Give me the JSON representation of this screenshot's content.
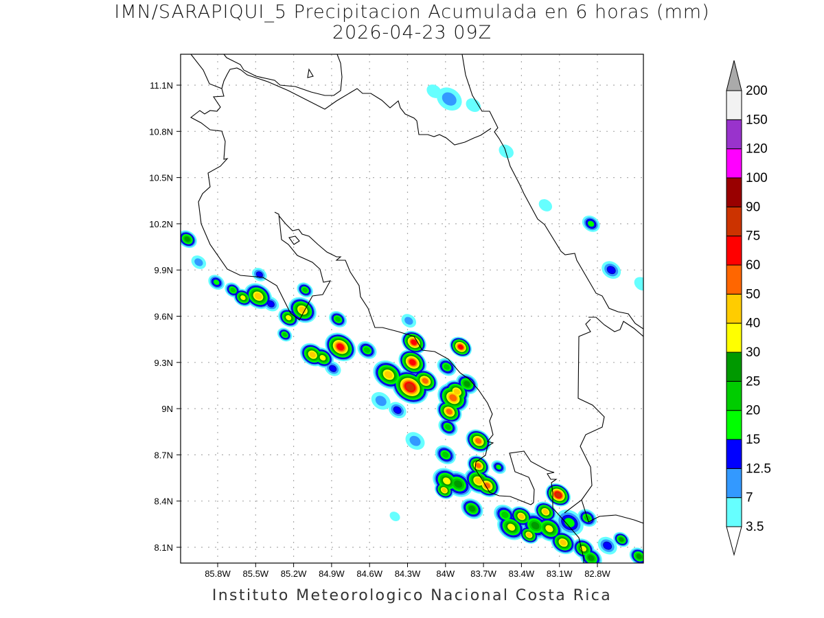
{
  "header": {
    "title": "IMN/SARAPIQUI_5 Precipitacion Acumulada en 6 horas (mm)",
    "subtitle": "2026-04-23 09Z"
  },
  "footer": "Instituto Meteorologico Nacional Costa Rica",
  "chart_data": {
    "type": "heatmap",
    "title": "IMN/SARAPIQUI_5 Precipitacion Acumulada en 6 horas (mm)",
    "valid_time": "2026-04-23 09Z",
    "units": "mm",
    "lon_ticks": [
      "85.8W",
      "85.5W",
      "85.2W",
      "84.9W",
      "84.6W",
      "84.3W",
      "84W",
      "83.7W",
      "83.4W",
      "83.1W",
      "82.8W"
    ],
    "lat_ticks": [
      "11.1N",
      "10.8N",
      "10.5N",
      "10.2N",
      "9.9N",
      "9.6N",
      "9.3N",
      "9N",
      "8.7N",
      "8.4N",
      "8.1N"
    ],
    "lon_range_W": [
      86.09,
      82.44
    ],
    "lat_range_N": [
      8.0,
      11.3
    ],
    "grid": true,
    "colorbar": {
      "position": "right",
      "labels": [
        "3.5",
        "7",
        "12.5",
        "15",
        "20",
        "25",
        "30",
        "40",
        "50",
        "60",
        "75",
        "90",
        "100",
        "120",
        "150",
        "200"
      ],
      "colors": [
        "#66ffff",
        "#3399ff",
        "#0000ff",
        "#00ff00",
        "#00cc00",
        "#009900",
        "#ffff00",
        "#ffcc00",
        "#ff6600",
        "#ff0000",
        "#cc3300",
        "#990000",
        "#ff00ff",
        "#9933cc",
        "#f2f2f2"
      ],
      "under_color": "#ffffff",
      "over_color": "#aaaaaa"
    },
    "precip_cells_note": "lonW, latN, max_mm, radius_deg",
    "precip_cells": [
      [
        86.04,
        10.1,
        25,
        0.04
      ],
      [
        85.95,
        9.95,
        7,
        0.025
      ],
      [
        85.81,
        9.82,
        15,
        0.03
      ],
      [
        85.68,
        9.77,
        20,
        0.03
      ],
      [
        85.6,
        9.72,
        30,
        0.04
      ],
      [
        85.48,
        9.73,
        40,
        0.07
      ],
      [
        85.47,
        9.87,
        12.5,
        0.025
      ],
      [
        85.38,
        9.68,
        12.5,
        0.03
      ],
      [
        85.24,
        9.59,
        30,
        0.045
      ],
      [
        85.13,
        9.64,
        40,
        0.07
      ],
      [
        85.11,
        9.77,
        20,
        0.03
      ],
      [
        85.27,
        9.48,
        20,
        0.025
      ],
      [
        84.85,
        9.58,
        20,
        0.035
      ],
      [
        84.83,
        9.4,
        60,
        0.08
      ],
      [
        85.05,
        9.35,
        40,
        0.06
      ],
      [
        84.97,
        9.33,
        30,
        0.05
      ],
      [
        84.89,
        9.26,
        12.5,
        0.03
      ],
      [
        84.62,
        9.38,
        20,
        0.04
      ],
      [
        84.25,
        9.43,
        60,
        0.06
      ],
      [
        84.29,
        9.57,
        7,
        0.025
      ],
      [
        84.26,
        9.3,
        60,
        0.07
      ],
      [
        84.45,
        9.22,
        40,
        0.08
      ],
      [
        84.28,
        9.14,
        75,
        0.1
      ],
      [
        84.16,
        9.18,
        50,
        0.06
      ],
      [
        83.94,
        9.07,
        50,
        0.08
      ],
      [
        83.97,
        8.98,
        50,
        0.06
      ],
      [
        83.88,
        9.4,
        60,
        0.05
      ],
      [
        83.99,
        9.27,
        20,
        0.04
      ],
      [
        83.91,
        9.11,
        40,
        0.06
      ],
      [
        83.83,
        9.16,
        25,
        0.05
      ],
      [
        83.98,
        8.88,
        20,
        0.04
      ],
      [
        84.38,
        8.99,
        12.5,
        0.035
      ],
      [
        84.51,
        9.05,
        7,
        0.04
      ],
      [
        84.24,
        8.79,
        7,
        0.04
      ],
      [
        83.74,
        8.79,
        50,
        0.06
      ],
      [
        84.0,
        8.7,
        20,
        0.045
      ],
      [
        83.74,
        8.63,
        50,
        0.05
      ],
      [
        83.58,
        8.62,
        15,
        0.025
      ],
      [
        83.99,
        8.53,
        30,
        0.07
      ],
      [
        83.9,
        8.51,
        25,
        0.07
      ],
      [
        83.74,
        8.53,
        40,
        0.07
      ],
      [
        83.67,
        8.5,
        50,
        0.06
      ],
      [
        84.01,
        8.47,
        40,
        0.04
      ],
      [
        83.79,
        8.35,
        25,
        0.05
      ],
      [
        83.48,
        8.23,
        30,
        0.07
      ],
      [
        83.53,
        8.31,
        20,
        0.05
      ],
      [
        83.4,
        8.3,
        40,
        0.05
      ],
      [
        83.29,
        8.24,
        25,
        0.07
      ],
      [
        83.21,
        8.33,
        40,
        0.05
      ],
      [
        83.34,
        8.18,
        40,
        0.04
      ],
      [
        83.11,
        8.44,
        75,
        0.06
      ],
      [
        83.18,
        8.22,
        30,
        0.07
      ],
      [
        83.07,
        8.13,
        40,
        0.06
      ],
      [
        83.02,
        8.26,
        15,
        0.07
      ],
      [
        82.91,
        8.09,
        30,
        0.05
      ],
      [
        82.85,
        8.03,
        25,
        0.05
      ],
      [
        82.72,
        8.11,
        12.5,
        0.04
      ],
      [
        82.61,
        8.15,
        25,
        0.03
      ],
      [
        82.47,
        8.04,
        25,
        0.04
      ],
      [
        83.97,
        11.01,
        7,
        0.06
      ],
      [
        84.09,
        11.06,
        3.5,
        0.025
      ],
      [
        83.78,
        10.97,
        3.5,
        0.025
      ],
      [
        83.52,
        10.67,
        3.5,
        0.025
      ],
      [
        83.21,
        10.32,
        3.5,
        0.02
      ],
      [
        82.85,
        10.2,
        15,
        0.035
      ],
      [
        82.69,
        9.9,
        12.5,
        0.04
      ],
      [
        82.45,
        9.81,
        3.5,
        0.025
      ],
      [
        82.88,
        8.29,
        20,
        0.04
      ],
      [
        84.4,
        8.3,
        3.5,
        0.01
      ]
    ]
  }
}
